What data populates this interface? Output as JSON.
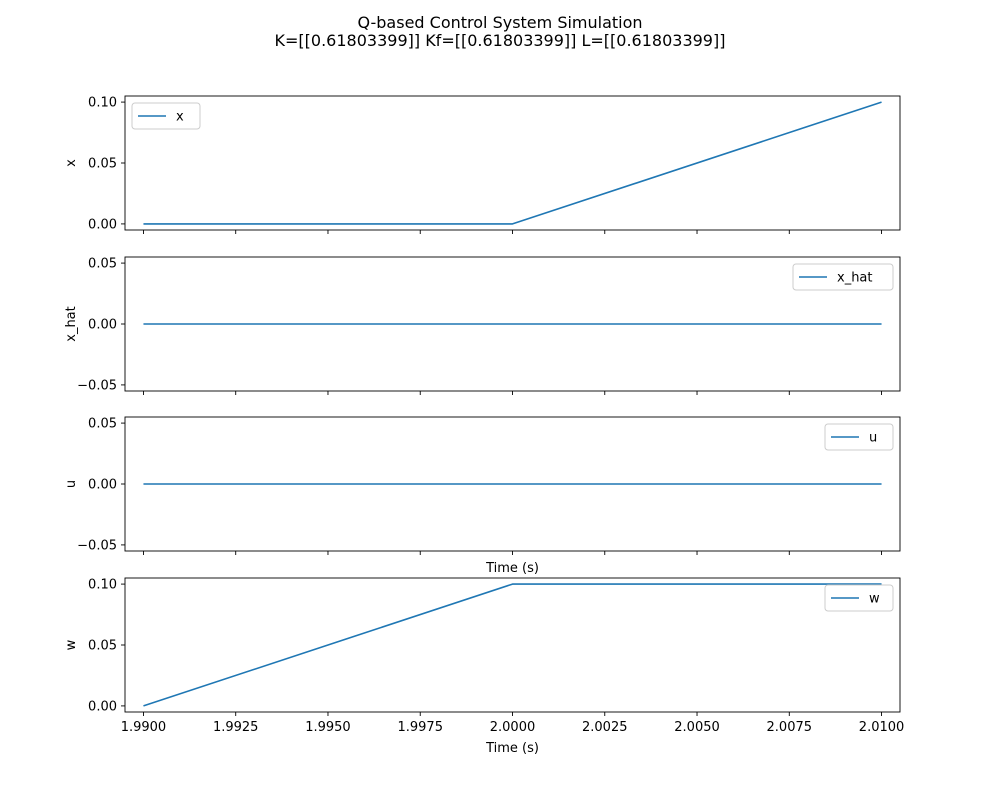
{
  "chart_data": {
    "type": "line",
    "title": "Q-based Control System Simulation",
    "subtitle": "K=[[0.61803399]] Kf=[[0.61803399]] L=[[0.61803399]]",
    "line_color": "#1f77b4",
    "x": [
      1.99,
      2.0,
      2.01
    ],
    "xlim": [
      1.9895,
      2.0105
    ],
    "x_ticks": [
      1.99,
      1.9925,
      1.995,
      1.9975,
      2.0,
      2.0025,
      2.005,
      2.0075,
      2.01
    ],
    "x_tick_labels": [
      "1.9900",
      "1.9925",
      "1.9950",
      "1.9975",
      "2.0000",
      "2.0025",
      "2.0050",
      "2.0075",
      "2.0100"
    ],
    "grid": false,
    "panels": [
      {
        "ylabel": "x",
        "xlabel": "",
        "series": [
          {
            "name": "x",
            "values": [
              0.0,
              0.0,
              0.1
            ]
          }
        ],
        "ylim": [
          -0.005,
          0.105
        ],
        "y_ticks": [
          0.0,
          0.05,
          0.1
        ],
        "y_tick_labels": [
          "0.00",
          "0.05",
          "0.10"
        ],
        "legend": "upper-left",
        "show_x_tick_labels": false
      },
      {
        "ylabel": "x_hat",
        "xlabel": "",
        "series": [
          {
            "name": "x_hat",
            "values": [
              0.0,
              0.0,
              0.0
            ]
          }
        ],
        "ylim": [
          -0.055,
          0.055
        ],
        "y_ticks": [
          -0.05,
          0.0,
          0.05
        ],
        "y_tick_labels": [
          "−0.05",
          "0.00",
          "0.05"
        ],
        "legend": "upper-right",
        "show_x_tick_labels": false
      },
      {
        "ylabel": "u",
        "xlabel": "Time (s)",
        "series": [
          {
            "name": "u",
            "values": [
              0.0,
              0.0,
              0.0
            ]
          }
        ],
        "ylim": [
          -0.055,
          0.055
        ],
        "y_ticks": [
          -0.05,
          0.0,
          0.05
        ],
        "y_tick_labels": [
          "−0.05",
          "0.00",
          "0.05"
        ],
        "legend": "upper-right",
        "show_x_tick_labels": false
      },
      {
        "ylabel": "w",
        "xlabel": "Time (s)",
        "series": [
          {
            "name": "w",
            "values": [
              0.0,
              0.1,
              0.1
            ]
          }
        ],
        "ylim": [
          -0.005,
          0.105
        ],
        "y_ticks": [
          0.0,
          0.05,
          0.1
        ],
        "y_tick_labels": [
          "0.00",
          "0.05",
          "0.10"
        ],
        "legend": "upper-right",
        "show_x_tick_labels": true
      }
    ]
  }
}
